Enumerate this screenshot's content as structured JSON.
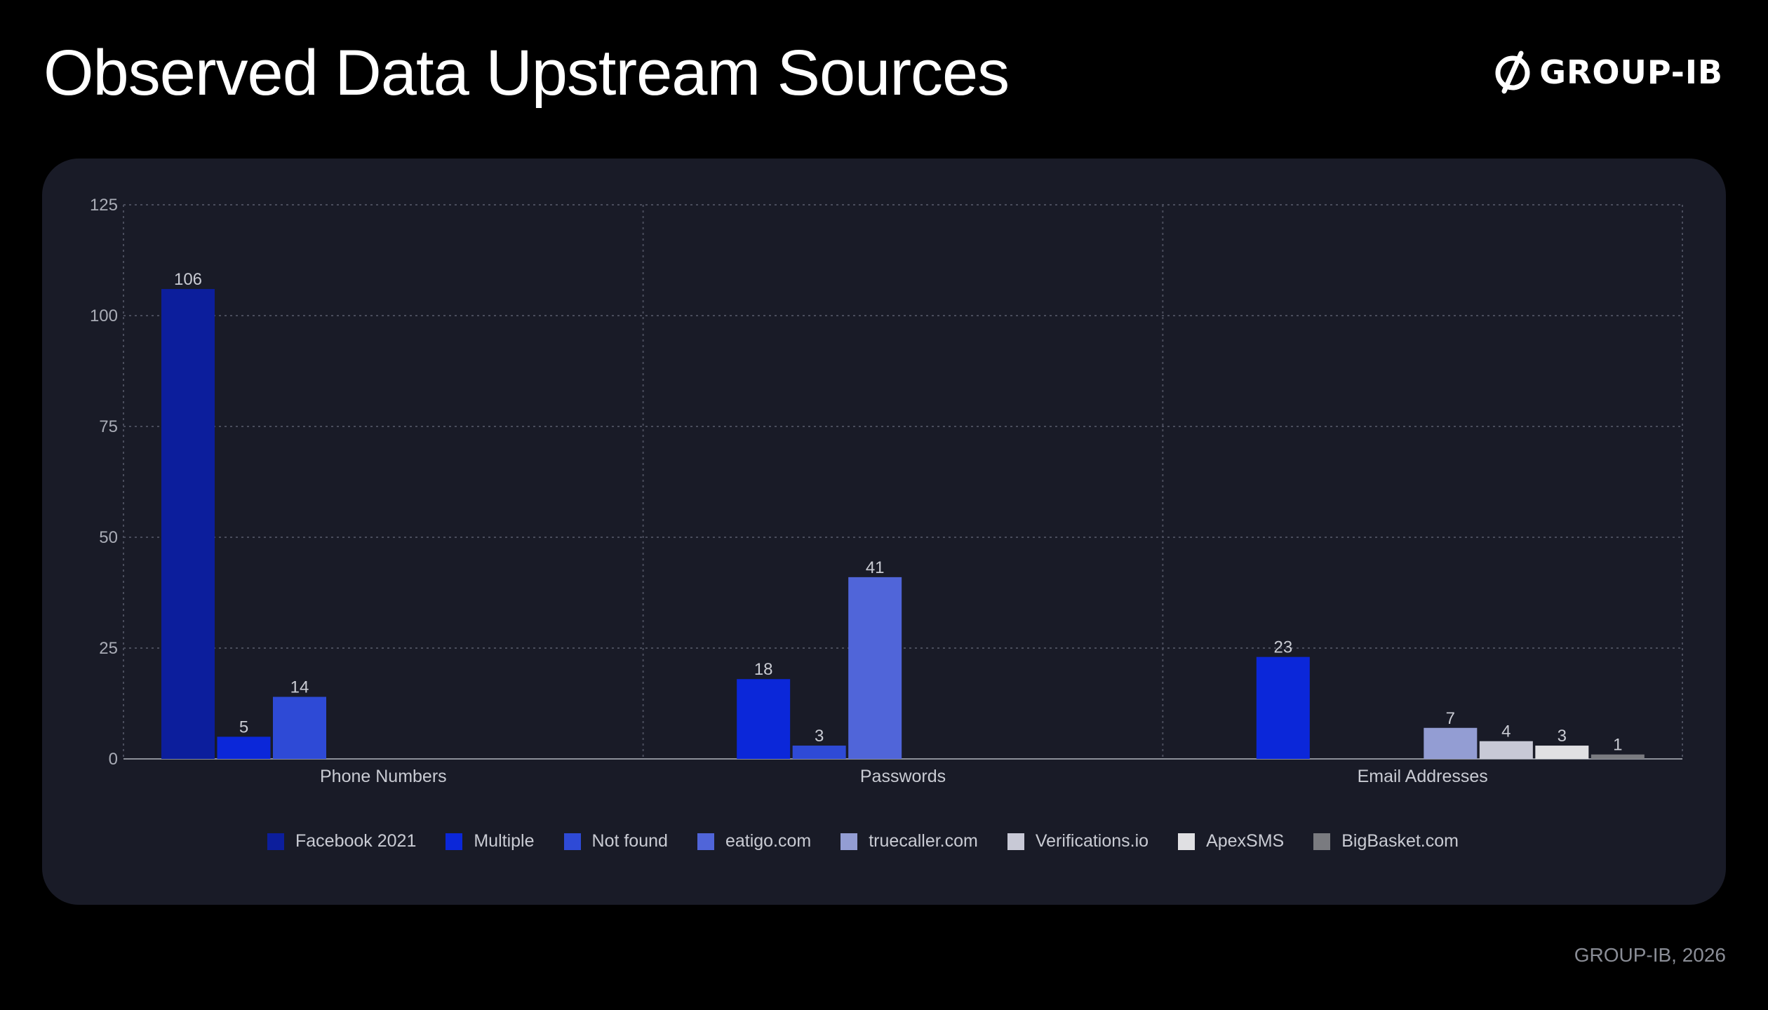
{
  "header": {
    "title": "Observed Data Upstream Sources",
    "brand": "GROUP-IB",
    "brand_icon": "slashed-circle-logo-icon"
  },
  "footer": {
    "credit": "GROUP-IB, 2026"
  },
  "chart_data": {
    "type": "bar",
    "title": "",
    "xlabel": "",
    "ylabel": "",
    "ylim": [
      0,
      125
    ],
    "yticks": [
      0,
      25,
      50,
      75,
      100,
      125
    ],
    "grid": true,
    "legend_position": "bottom",
    "categories": [
      "Phone Numbers",
      "Passwords",
      "Email Addresses"
    ],
    "series": [
      {
        "name": "Facebook 2021",
        "color": "#0c1e9c",
        "values": [
          106,
          null,
          null
        ]
      },
      {
        "name": "Multiple",
        "color": "#0b27d9",
        "values": [
          5,
          18,
          23
        ]
      },
      {
        "name": "Not found",
        "color": "#2e4ad6",
        "values": [
          14,
          3,
          null
        ]
      },
      {
        "name": "eatigo.com",
        "color": "#5065d9",
        "values": [
          null,
          41,
          null
        ]
      },
      {
        "name": "truecaller.com",
        "color": "#939dd3",
        "values": [
          null,
          null,
          7
        ]
      },
      {
        "name": "Verifications.io",
        "color": "#c8c9d6",
        "values": [
          null,
          null,
          4
        ]
      },
      {
        "name": "ApexSMS",
        "color": "#e0e0e3",
        "values": [
          null,
          null,
          3
        ]
      },
      {
        "name": "BigBasket.com",
        "color": "#7a7b80",
        "values": [
          null,
          null,
          1
        ]
      }
    ]
  }
}
